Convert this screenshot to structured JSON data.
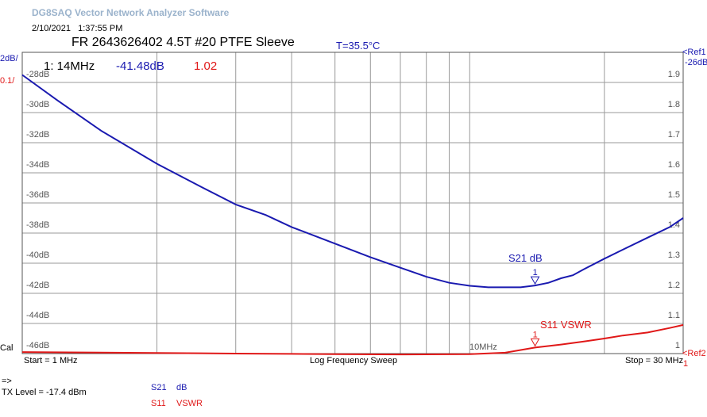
{
  "app": {
    "title": "DG8SAQ Vector Network Analyzer Software"
  },
  "datetime": {
    "date": "2/10/2021",
    "time": "1:37:55 PM"
  },
  "chart_title": "FR 2643626402 4.5T #20 PTFE Sleeve",
  "temperature": "T=35.5°C",
  "marker_readout": {
    "marker": "1: 14MHz",
    "s21": "-41.48dB",
    "s11": "1.02"
  },
  "left_scale": {
    "ch1_label": "2dB/",
    "ch2_label": "0.1/"
  },
  "right_scale": {
    "ref1_label": "<Ref1",
    "ref1_value": "-26dB",
    "ref2_label": "<Ref2",
    "ref2_value": "1"
  },
  "cal_label": "Cal",
  "sweep": {
    "start": "Start = 1 MHz",
    "mode": "Log Frequency Sweep",
    "stop": "Stop = 30 MHz",
    "mid_label": "10MHz"
  },
  "status": {
    "arrow": "=>",
    "tx_level": "TX Level = -17.4 dBm"
  },
  "legend": [
    {
      "name": "S21",
      "unit": "dB",
      "color": "#1a1ab0"
    },
    {
      "name": "S11",
      "unit": "VSWR",
      "color": "#e01818"
    }
  ],
  "colors": {
    "s21": "#1a1ab0",
    "s11": "#e01818",
    "grid": "#9a9a9a",
    "frame": "#555555"
  },
  "chart_data": {
    "type": "line",
    "x_scale": "log",
    "xlim_mhz": [
      1,
      30
    ],
    "grid": true,
    "left_axis": {
      "ylim_db": [
        -46,
        -26
      ],
      "tick_labels": [
        "-28dB",
        "-30dB",
        "-32dB",
        "-34dB",
        "-36dB",
        "-38dB",
        "-40dB",
        "-42dB",
        "-44dB",
        "-46dB"
      ]
    },
    "right_axis": {
      "ylim_vswr": [
        1,
        2
      ],
      "tick_labels": [
        "1.9",
        "1.8",
        "1.7",
        "1.6",
        "1.5",
        "1.4",
        "1.3",
        "1.2",
        "1.1",
        "1"
      ]
    },
    "series": [
      {
        "name": "S21",
        "unit": "dB",
        "axis": "left",
        "x": [
          1,
          1.2,
          1.5,
          2,
          2.5,
          3,
          3.5,
          4,
          5,
          6,
          7,
          8,
          9,
          10,
          11,
          12,
          13,
          14,
          15,
          16,
          17,
          18,
          20,
          22,
          25,
          28,
          30
        ],
        "y": [
          -27.5,
          -29.2,
          -31.2,
          -33.4,
          -34.9,
          -36.1,
          -36.8,
          -37.6,
          -38.7,
          -39.6,
          -40.3,
          -40.9,
          -41.3,
          -41.5,
          -41.6,
          -41.6,
          -41.6,
          -41.48,
          -41.3,
          -41.0,
          -40.8,
          -40.4,
          -39.7,
          -39.1,
          -38.3,
          -37.6,
          -37.0
        ]
      },
      {
        "name": "S11",
        "unit": "VSWR",
        "axis": "right",
        "x": [
          1,
          2,
          3,
          4,
          5,
          7,
          10,
          12,
          14,
          16,
          18,
          20,
          22,
          25,
          28,
          30
        ],
        "y": [
          1.005,
          1.002,
          1.0,
          0.999,
          0.998,
          0.997,
          0.998,
          1.003,
          1.02,
          1.03,
          1.04,
          1.05,
          1.06,
          1.07,
          1.085,
          1.095
        ]
      }
    ],
    "markers": [
      {
        "label": "1",
        "series": "S21",
        "x": 14,
        "y": -41.48
      },
      {
        "label": "1",
        "series": "S11",
        "x": 14,
        "y": 1.02
      }
    ],
    "trace_labels": [
      {
        "text": "S21 dB",
        "series": "S21"
      },
      {
        "text": "S11 VSWR",
        "series": "S11"
      }
    ]
  }
}
